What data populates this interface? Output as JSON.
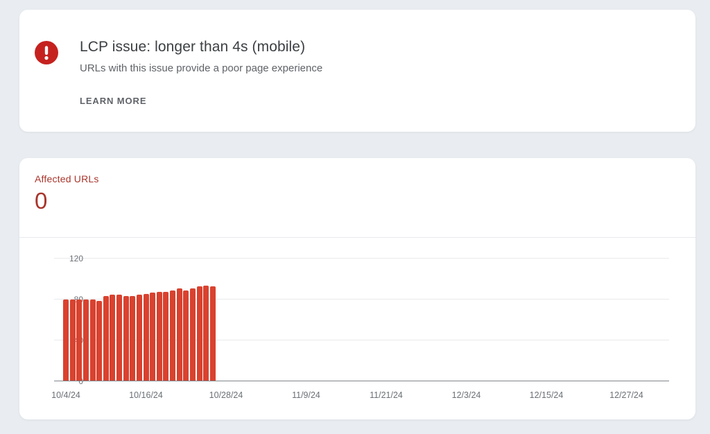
{
  "issue_card": {
    "title": "LCP issue: longer than 4s (mobile)",
    "subtitle": "URLs with this issue provide a poor page experience",
    "learn_more_label": "LEARN MORE",
    "icon": "error-icon",
    "icon_color": "#c5221f"
  },
  "chart_card": {
    "metric_label": "Affected URLs",
    "metric_value": "0",
    "accent_color": "#a8352b"
  },
  "chart_data": {
    "type": "bar",
    "title": "Affected URLs",
    "x": [
      "10/4/24",
      "10/5/24",
      "10/6/24",
      "10/7/24",
      "10/8/24",
      "10/9/24",
      "10/10/24",
      "10/11/24",
      "10/12/24",
      "10/13/24",
      "10/14/24",
      "10/15/24",
      "10/16/24",
      "10/17/24",
      "10/18/24",
      "10/19/24",
      "10/20/24",
      "10/21/24",
      "10/22/24",
      "10/23/24",
      "10/24/24",
      "10/25/24",
      "10/26/24"
    ],
    "values": [
      79,
      79,
      79,
      79,
      79,
      78,
      83,
      84,
      84,
      83,
      83,
      84,
      85,
      86,
      87,
      87,
      88,
      90,
      88,
      90,
      92,
      93,
      92
    ],
    "x_tick_labels": [
      "10/4/24",
      "10/16/24",
      "10/28/24",
      "11/9/24",
      "11/21/24",
      "12/3/24",
      "12/15/24",
      "12/27/24"
    ],
    "x_tick_day_offsets": [
      0,
      12,
      24,
      36,
      48,
      60,
      72,
      84
    ],
    "y_ticks": [
      0,
      40,
      80,
      120
    ],
    "ylim": [
      0,
      120
    ],
    "xlabel": "",
    "ylabel": "",
    "bar_color": "#d9422f",
    "grid": true,
    "legend": "none"
  }
}
